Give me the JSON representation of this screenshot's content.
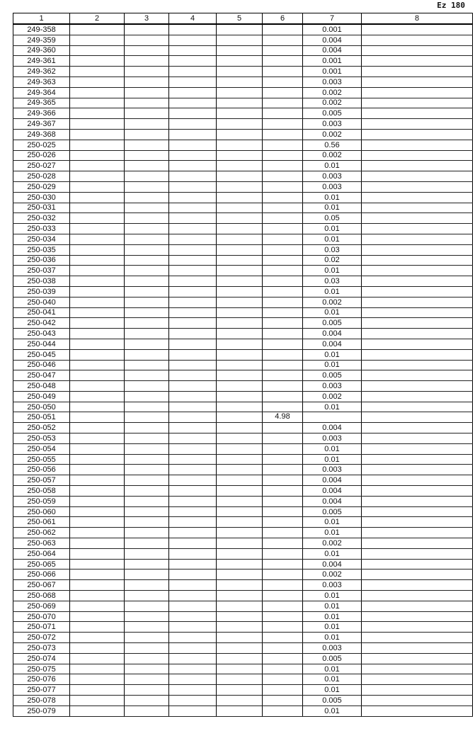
{
  "page_number": "Ez 180",
  "headers": [
    "1",
    "2",
    "3",
    "4",
    "5",
    "6",
    "7",
    "8"
  ],
  "rows": [
    [
      "249-358",
      "",
      "",
      "",
      "",
      "",
      "0.001",
      ""
    ],
    [
      "249-359",
      "",
      "",
      "",
      "",
      "",
      "0.004",
      ""
    ],
    [
      "249-360",
      "",
      "",
      "",
      "",
      "",
      "0.004",
      ""
    ],
    [
      "249-361",
      "",
      "",
      "",
      "",
      "",
      "0.001",
      ""
    ],
    [
      "249-362",
      "",
      "",
      "",
      "",
      "",
      "0.001",
      ""
    ],
    [
      "249-363",
      "",
      "",
      "",
      "",
      "",
      "0.003",
      ""
    ],
    [
      "249-364",
      "",
      "",
      "",
      "",
      "",
      "0.002",
      ""
    ],
    [
      "249-365",
      "",
      "",
      "",
      "",
      "",
      "0.002",
      ""
    ],
    [
      "249-366",
      "",
      "",
      "",
      "",
      "",
      "0.005",
      ""
    ],
    [
      "249-367",
      "",
      "",
      "",
      "",
      "",
      "0.003",
      ""
    ],
    [
      "249-368",
      "",
      "",
      "",
      "",
      "",
      "0.002",
      ""
    ],
    [
      "250-025",
      "",
      "",
      "",
      "",
      "",
      "0.56",
      ""
    ],
    [
      "250-026",
      "",
      "",
      "",
      "",
      "",
      "0.002",
      ""
    ],
    [
      "250-027",
      "",
      "",
      "",
      "",
      "",
      "0.01",
      ""
    ],
    [
      "250-028",
      "",
      "",
      "",
      "",
      "",
      "0.003",
      ""
    ],
    [
      "250-029",
      "",
      "",
      "",
      "",
      "",
      "0.003",
      ""
    ],
    [
      "250-030",
      "",
      "",
      "",
      "",
      "",
      "0.01",
      ""
    ],
    [
      "250-031",
      "",
      "",
      "",
      "",
      "",
      "0.01",
      ""
    ],
    [
      "250-032",
      "",
      "",
      "",
      "",
      "",
      "0.05",
      ""
    ],
    [
      "250-033",
      "",
      "",
      "",
      "",
      "",
      "0.01",
      ""
    ],
    [
      "250-034",
      "",
      "",
      "",
      "",
      "",
      "0.01",
      ""
    ],
    [
      "250-035",
      "",
      "",
      "",
      "",
      "",
      "0.03",
      ""
    ],
    [
      "250-036",
      "",
      "",
      "",
      "",
      "",
      "0.02",
      ""
    ],
    [
      "250-037",
      "",
      "",
      "",
      "",
      "",
      "0.01",
      ""
    ],
    [
      "250-038",
      "",
      "",
      "",
      "",
      "",
      "0.03",
      ""
    ],
    [
      "250-039",
      "",
      "",
      "",
      "",
      "",
      "0.01",
      ""
    ],
    [
      "250-040",
      "",
      "",
      "",
      "",
      "",
      "0.002",
      ""
    ],
    [
      "250-041",
      "",
      "",
      "",
      "",
      "",
      "0.01",
      ""
    ],
    [
      "250-042",
      "",
      "",
      "",
      "",
      "",
      "0.005",
      ""
    ],
    [
      "250-043",
      "",
      "",
      "",
      "",
      "",
      "0.004",
      ""
    ],
    [
      "250-044",
      "",
      "",
      "",
      "",
      "",
      "0.004",
      ""
    ],
    [
      "250-045",
      "",
      "",
      "",
      "",
      "",
      "0.01",
      ""
    ],
    [
      "250-046",
      "",
      "",
      "",
      "",
      "",
      "0.01",
      ""
    ],
    [
      "250-047",
      "",
      "",
      "",
      "",
      "",
      "0.005",
      ""
    ],
    [
      "250-048",
      "",
      "",
      "",
      "",
      "",
      "0.003",
      ""
    ],
    [
      "250-049",
      "",
      "",
      "",
      "",
      "",
      "0.002",
      ""
    ],
    [
      "250-050",
      "",
      "",
      "",
      "",
      "",
      "0.01",
      ""
    ],
    [
      "250-051",
      "",
      "",
      "",
      "",
      "4.98",
      "",
      ""
    ],
    [
      "250-052",
      "",
      "",
      "",
      "",
      "",
      "0.004",
      ""
    ],
    [
      "250-053",
      "",
      "",
      "",
      "",
      "",
      "0.003",
      ""
    ],
    [
      "250-054",
      "",
      "",
      "",
      "",
      "",
      "0.01",
      ""
    ],
    [
      "250-055",
      "",
      "",
      "",
      "",
      "",
      "0.01",
      ""
    ],
    [
      "250-056",
      "",
      "",
      "",
      "",
      "",
      "0.003",
      ""
    ],
    [
      "250-057",
      "",
      "",
      "",
      "",
      "",
      "0.004",
      ""
    ],
    [
      "250-058",
      "",
      "",
      "",
      "",
      "",
      "0.004",
      ""
    ],
    [
      "250-059",
      "",
      "",
      "",
      "",
      "",
      "0.004",
      ""
    ],
    [
      "250-060",
      "",
      "",
      "",
      "",
      "",
      "0.005",
      ""
    ],
    [
      "250-061",
      "",
      "",
      "",
      "",
      "",
      "0.01",
      ""
    ],
    [
      "250-062",
      "",
      "",
      "",
      "",
      "",
      "0.01",
      ""
    ],
    [
      "250-063",
      "",
      "",
      "",
      "",
      "",
      "0.002",
      ""
    ],
    [
      "250-064",
      "",
      "",
      "",
      "",
      "",
      "0.01",
      ""
    ],
    [
      "250-065",
      "",
      "",
      "",
      "",
      "",
      "0.004",
      ""
    ],
    [
      "250-066",
      "",
      "",
      "",
      "",
      "",
      "0.002",
      ""
    ],
    [
      "250-067",
      "",
      "",
      "",
      "",
      "",
      "0.003",
      ""
    ],
    [
      "250-068",
      "",
      "",
      "",
      "",
      "",
      "0.01",
      ""
    ],
    [
      "250-069",
      "",
      "",
      "",
      "",
      "",
      "0.01",
      ""
    ],
    [
      "250-070",
      "",
      "",
      "",
      "",
      "",
      "0.01",
      ""
    ],
    [
      "250-071",
      "",
      "",
      "",
      "",
      "",
      "0.01",
      ""
    ],
    [
      "250-072",
      "",
      "",
      "",
      "",
      "",
      "0.01",
      ""
    ],
    [
      "250-073",
      "",
      "",
      "",
      "",
      "",
      "0.003",
      ""
    ],
    [
      "250-074",
      "",
      "",
      "",
      "",
      "",
      "0.005",
      ""
    ],
    [
      "250-075",
      "",
      "",
      "",
      "",
      "",
      "0.01",
      ""
    ],
    [
      "250-076",
      "",
      "",
      "",
      "",
      "",
      "0.01",
      ""
    ],
    [
      "250-077",
      "",
      "",
      "",
      "",
      "",
      "0.01",
      ""
    ],
    [
      "250-078",
      "",
      "",
      "",
      "",
      "",
      "0.005",
      ""
    ],
    [
      "250-079",
      "",
      "",
      "",
      "",
      "",
      "0.01",
      ""
    ]
  ]
}
